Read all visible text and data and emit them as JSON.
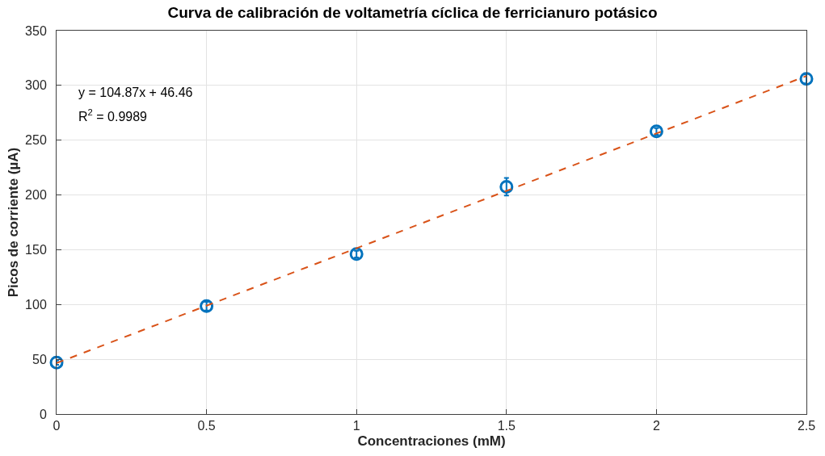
{
  "chart_data": {
    "type": "scatter",
    "title": "Curva de calibración de voltametría cíclica de ferricianuro potásico",
    "xlabel": "Concentraciones (mM)",
    "ylabel": "Picos de corriente (µA)",
    "x": [
      0,
      0.5,
      1,
      1.5,
      2,
      2.5
    ],
    "series": [
      {
        "color": "#0072bd",
        "values": [
          47,
          98.5,
          146,
          207.5,
          258,
          306
        ],
        "errors": [
          2,
          4,
          3,
          8,
          3,
          4
        ]
      },
      {
        "type": "line",
        "color": "#d95319",
        "line_style": "dashed",
        "x": [
          0,
          2.5
        ],
        "values": [
          46.5,
          308.6
        ]
      }
    ],
    "xlim": [
      0,
      2.5
    ],
    "xticks": [
      0,
      0.5,
      1,
      1.5,
      2,
      2.5
    ],
    "ylim": [
      0,
      350
    ],
    "yticks": [
      0,
      50,
      100,
      150,
      200,
      250,
      300,
      350
    ],
    "grid": true,
    "annotations": [
      "y = 104.87x + 46.46",
      "R$^{2}$ = 0.9989"
    ]
  }
}
